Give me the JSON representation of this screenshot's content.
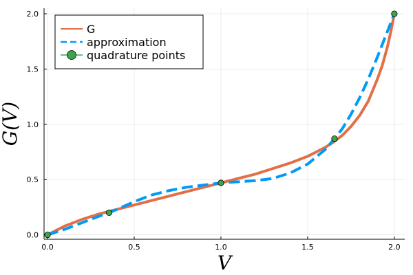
{
  "chart_data": {
    "type": "line",
    "xlabel": "V",
    "ylabel": "G(V)",
    "xlim": [
      -0.02,
      2.06
    ],
    "ylim": [
      -0.04,
      2.05
    ],
    "xticks": [
      0.0,
      0.5,
      1.0,
      1.5,
      2.0
    ],
    "yticks": [
      0.0,
      0.5,
      1.0,
      1.5,
      2.0
    ],
    "xtick_labels": [
      "0.0",
      "0.5",
      "1.0",
      "1.5",
      "2.0"
    ],
    "ytick_labels": [
      "0.0",
      "0.5",
      "1.0",
      "1.5",
      "2.0"
    ],
    "grid": true,
    "legend_position": "top-left",
    "series": [
      {
        "name": "G",
        "style": "solid",
        "color": "#e26f46",
        "x": [
          0.0,
          0.1,
          0.2,
          0.3,
          0.4,
          0.5,
          0.6,
          0.7,
          0.8,
          0.9,
          1.0,
          1.1,
          1.2,
          1.3,
          1.4,
          1.5,
          1.6,
          1.65,
          1.7,
          1.75,
          1.8,
          1.85,
          1.9,
          1.93,
          1.96,
          1.98,
          1.99,
          2.0
        ],
        "y": [
          0.0,
          0.08,
          0.14,
          0.19,
          0.23,
          0.27,
          0.31,
          0.35,
          0.39,
          0.43,
          0.47,
          0.51,
          0.55,
          0.6,
          0.65,
          0.71,
          0.79,
          0.84,
          0.9,
          0.98,
          1.08,
          1.21,
          1.4,
          1.53,
          1.7,
          1.84,
          1.92,
          2.0
        ]
      },
      {
        "name": "approximation",
        "style": "dashed",
        "color": "#009af9",
        "x": [
          0.0,
          0.1,
          0.2,
          0.3,
          0.355,
          0.4,
          0.5,
          0.6,
          0.7,
          0.8,
          0.9,
          1.0,
          1.1,
          1.2,
          1.3,
          1.4,
          1.5,
          1.6,
          1.655,
          1.7,
          1.75,
          1.8,
          1.85,
          1.9,
          1.95,
          2.0
        ],
        "y": [
          0.0,
          0.05,
          0.11,
          0.17,
          0.2,
          0.23,
          0.3,
          0.36,
          0.4,
          0.43,
          0.45,
          0.47,
          0.48,
          0.49,
          0.51,
          0.56,
          0.64,
          0.77,
          0.87,
          0.96,
          1.09,
          1.24,
          1.41,
          1.6,
          1.8,
          2.0
        ]
      },
      {
        "name": "quadrature points",
        "style": "markers",
        "color": "#3da44d",
        "x": [
          0.0,
          0.355,
          1.0,
          1.655,
          2.0
        ],
        "y": [
          0.0,
          0.2,
          0.47,
          0.87,
          2.0
        ]
      }
    ]
  }
}
